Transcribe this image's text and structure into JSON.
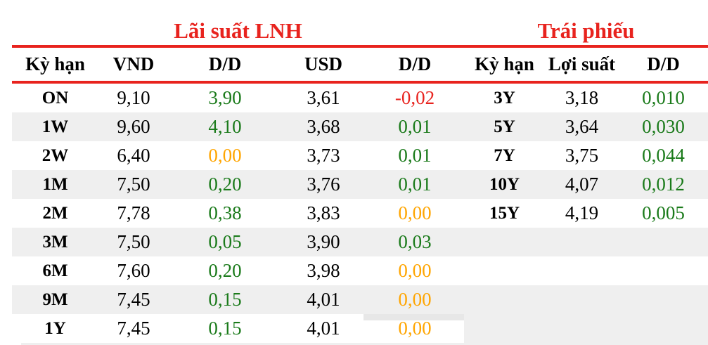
{
  "colors": {
    "red": "#e8231e",
    "green": "#1a7a1a",
    "orange": "#ffa500",
    "row_alt": "#efefef",
    "text": "#000000"
  },
  "lnh_table": {
    "title": "Lãi suất LNH",
    "headers": {
      "term": "Kỳ hạn",
      "vnd": "VND",
      "vnd_dd": "D/D",
      "usd": "USD",
      "usd_dd": "D/D"
    },
    "rows": [
      {
        "term": "ON",
        "vnd": "9,10",
        "vnd_dd": "3,90",
        "vnd_dd_color": "green",
        "usd": "3,61",
        "usd_dd": "-0,02",
        "usd_dd_color": "red"
      },
      {
        "term": "1W",
        "vnd": "9,60",
        "vnd_dd": "4,10",
        "vnd_dd_color": "green",
        "usd": "3,68",
        "usd_dd": "0,01",
        "usd_dd_color": "green"
      },
      {
        "term": "2W",
        "vnd": "6,40",
        "vnd_dd": "0,00",
        "vnd_dd_color": "orange",
        "usd": "3,73",
        "usd_dd": "0,01",
        "usd_dd_color": "green"
      },
      {
        "term": "1M",
        "vnd": "7,50",
        "vnd_dd": "0,20",
        "vnd_dd_color": "green",
        "usd": "3,76",
        "usd_dd": "0,01",
        "usd_dd_color": "green"
      },
      {
        "term": "2M",
        "vnd": "7,78",
        "vnd_dd": "0,38",
        "vnd_dd_color": "green",
        "usd": "3,83",
        "usd_dd": "0,00",
        "usd_dd_color": "orange"
      },
      {
        "term": "3M",
        "vnd": "7,50",
        "vnd_dd": "0,05",
        "vnd_dd_color": "green",
        "usd": "3,90",
        "usd_dd": "0,03",
        "usd_dd_color": "green"
      },
      {
        "term": "6M",
        "vnd": "7,60",
        "vnd_dd": "0,20",
        "vnd_dd_color": "green",
        "usd": "3,98",
        "usd_dd": "0,00",
        "usd_dd_color": "orange"
      },
      {
        "term": "9M",
        "vnd": "7,45",
        "vnd_dd": "0,15",
        "vnd_dd_color": "green",
        "usd": "4,01",
        "usd_dd": "0,00",
        "usd_dd_color": "orange"
      },
      {
        "term": "1Y",
        "vnd": "7,45",
        "vnd_dd": "0,15",
        "vnd_dd_color": "green",
        "usd": "4,01",
        "usd_dd": "0,00",
        "usd_dd_color": "orange"
      }
    ]
  },
  "bond_table": {
    "title": "Trái phiếu",
    "headers": {
      "term": "Kỳ hạn",
      "yield": "Lợi suất",
      "dd": "D/D"
    },
    "rows": [
      {
        "term": "3Y",
        "yield": "3,18",
        "dd": "0,010",
        "dd_color": "green"
      },
      {
        "term": "5Y",
        "yield": "3,64",
        "dd": "0,030",
        "dd_color": "green"
      },
      {
        "term": "7Y",
        "yield": "3,75",
        "dd": "0,044",
        "dd_color": "green"
      },
      {
        "term": "10Y",
        "yield": "4,07",
        "dd": "0,012",
        "dd_color": "green"
      },
      {
        "term": "15Y",
        "yield": "4,19",
        "dd": "0,005",
        "dd_color": "green"
      }
    ]
  }
}
